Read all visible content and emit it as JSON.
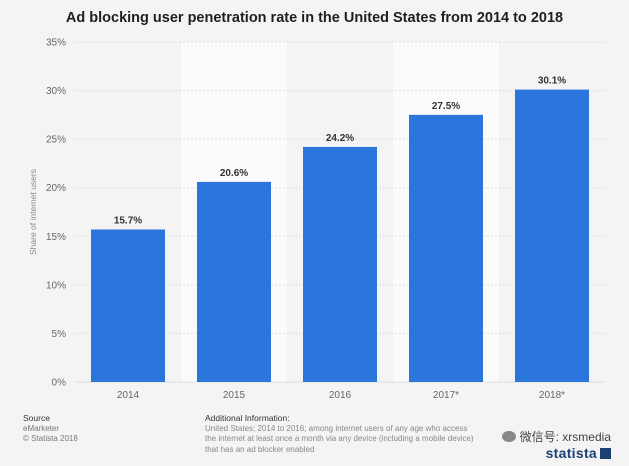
{
  "chart_data": {
    "type": "bar",
    "title": "Ad blocking user penetration rate in the United States from 2014 to 2018",
    "categories": [
      "2014",
      "2015",
      "2016",
      "2017*",
      "2018*"
    ],
    "values": [
      15.7,
      20.6,
      24.2,
      27.5,
      30.1
    ],
    "value_labels": [
      "15.7%",
      "20.6%",
      "24.2%",
      "27.5%",
      "30.1%"
    ],
    "ylabel": "Share of internet users",
    "xlabel": "",
    "ylim": [
      0,
      35
    ],
    "yticks": [
      0,
      5,
      10,
      15,
      20,
      25,
      30,
      35
    ],
    "ytick_labels": [
      "0%",
      "5%",
      "10%",
      "15%",
      "20%",
      "25%",
      "30%",
      "35%"
    ],
    "bar_color": "#2b76dd",
    "grid": true
  },
  "footer": {
    "source_header": "Source",
    "source_name": "eMarketer",
    "copyright": "© Statista 2018",
    "info_header": "Additional Information:",
    "info_text": "United States; 2014 to 2016; among internet users of any age who access the internet at least once a month via any device (including a mobile device) that has an ad blocker enabled",
    "wechat": "微信号: xrsmedia",
    "brand": "statista"
  }
}
